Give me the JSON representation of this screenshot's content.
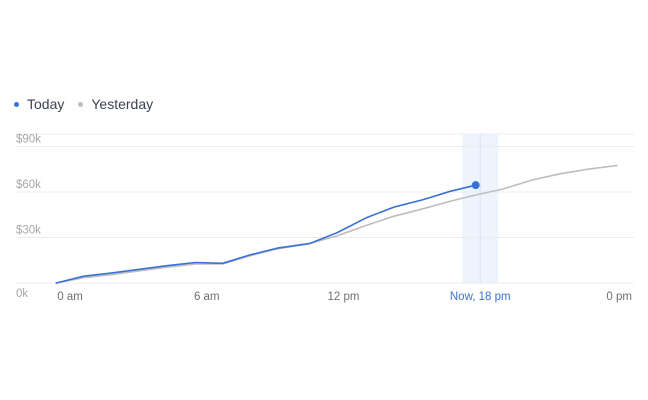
{
  "colors": {
    "today": "#3a71d6",
    "yesterday": "#bdbdbd",
    "grid": "#ececec",
    "axis_text": "#a6a6a6",
    "x_text": "#6f6f6f",
    "now_text": "#3a71d6",
    "highlight": "#e8f0fc"
  },
  "legend": {
    "today": "Today",
    "yesterday": "Yesterday"
  },
  "chart_data": {
    "type": "line",
    "x_ticks": [
      {
        "x": 0,
        "label": "0 am"
      },
      {
        "x": 6,
        "label": "6 am"
      },
      {
        "x": 12,
        "label": "12 pm"
      },
      {
        "x": 18,
        "label": "Now, 18 pm"
      },
      {
        "x": 24,
        "label": "0 pm"
      }
    ],
    "y_ticks": [
      {
        "y": 0,
        "label": "0k"
      },
      {
        "y": 30000,
        "label": "$30k"
      },
      {
        "y": 60000,
        "label": "$60k"
      },
      {
        "y": 90000,
        "label": "$90k"
      }
    ],
    "xlim": [
      0,
      24
    ],
    "ylim": [
      0,
      90000
    ],
    "grid": true,
    "legend_position": "top-left",
    "highlight_x": 18,
    "series": [
      {
        "name": "Today",
        "x": [
          -0.6,
          0.6,
          1.8,
          3.0,
          4.3,
          5.5,
          6.7,
          7.9,
          9.1,
          10.5,
          11.7,
          13.0,
          14.2,
          15.5,
          16.7,
          17.8
        ],
        "y": [
          0,
          4500,
          6500,
          9000,
          11500,
          13500,
          13000,
          18500,
          23000,
          26000,
          33000,
          43000,
          50000,
          55000,
          60500,
          64500
        ]
      },
      {
        "name": "Yesterday",
        "x": [
          -0.6,
          0.6,
          1.8,
          3.0,
          4.3,
          5.5,
          6.7,
          7.9,
          9.1,
          10.5,
          11.7,
          13.0,
          14.2,
          15.5,
          16.7,
          17.8,
          19.0,
          20.3,
          21.5,
          22.7,
          24.0
        ],
        "y": [
          0,
          3500,
          5500,
          8000,
          10500,
          12500,
          12500,
          18000,
          22500,
          26000,
          31000,
          38000,
          44000,
          49000,
          54000,
          58000,
          62000,
          68000,
          72000,
          75000,
          77500
        ]
      }
    ]
  }
}
